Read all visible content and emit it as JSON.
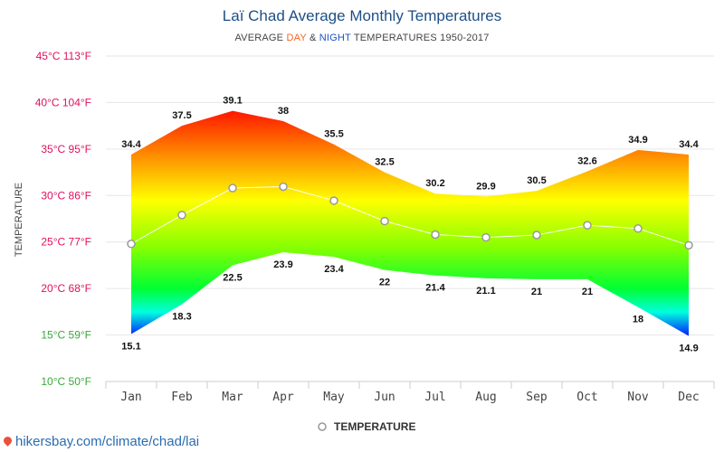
{
  "title": "Laï Chad Average Monthly Temperatures",
  "subtitle": {
    "prefix": "AVERAGE ",
    "day": "DAY",
    "amp": " & ",
    "night": "NIGHT",
    "suffix": " TEMPERATURES 1950-2017"
  },
  "footer": {
    "link": "hikersbay.com/climate/chad/lai"
  },
  "colors": {
    "title": "#1d4f86",
    "day": "#f26522",
    "night": "#1a52c5",
    "link": "#2b6cb0"
  },
  "chart_data": {
    "type": "area",
    "categories": [
      "Jan",
      "Feb",
      "Mar",
      "Apr",
      "May",
      "Jun",
      "Jul",
      "Aug",
      "Sep",
      "Oct",
      "Nov",
      "Dec"
    ],
    "series": [
      {
        "values": [
          34.4,
          37.5,
          39.1,
          38,
          35.5,
          32.5,
          30.2,
          29.9,
          30.5,
          32.6,
          34.9,
          34.4
        ]
      },
      {
        "values": [
          15.1,
          18.3,
          22.5,
          23.9,
          23.4,
          22,
          21.4,
          21.1,
          21,
          21,
          18,
          14.9
        ]
      },
      {
        "name": "TEMPERATURE",
        "values": [
          24.8,
          27.9,
          30.8,
          30.95,
          29.45,
          27.25,
          25.8,
          25.5,
          25.75,
          26.8,
          26.45,
          24.65
        ]
      }
    ],
    "day_labels": [
      "34.4",
      "37.5",
      "39.1",
      "38",
      "35.5",
      "32.5",
      "30.2",
      "29.9",
      "30.5",
      "32.6",
      "34.9",
      "34.4"
    ],
    "night_labels": [
      "15.1",
      "18.3",
      "22.5",
      "23.9",
      "23.4",
      "22",
      "21.4",
      "21.1",
      "21",
      "21",
      "18",
      "14.9"
    ],
    "y_ticks": [
      {
        "value": 45,
        "label": "45°C 113°F",
        "color": "#e0115f"
      },
      {
        "value": 40,
        "label": "40°C 104°F",
        "color": "#e0115f"
      },
      {
        "value": 35,
        "label": "35°C 95°F",
        "color": "#e0115f"
      },
      {
        "value": 30,
        "label": "30°C 86°F",
        "color": "#e0115f"
      },
      {
        "value": 25,
        "label": "25°C 77°F",
        "color": "#e0115f"
      },
      {
        "value": 20,
        "label": "20°C 68°F",
        "color": "#e0115f"
      },
      {
        "value": 15,
        "label": "15°C 59°F",
        "color": "#3aa83a"
      },
      {
        "value": 10,
        "label": "10°C 50°F",
        "color": "#3aa83a"
      }
    ],
    "ylabel": "TEMPERATURE",
    "ylim": [
      10,
      45
    ],
    "grid": true,
    "legend": {
      "label": "TEMPERATURE",
      "position": "bottom-center"
    }
  }
}
